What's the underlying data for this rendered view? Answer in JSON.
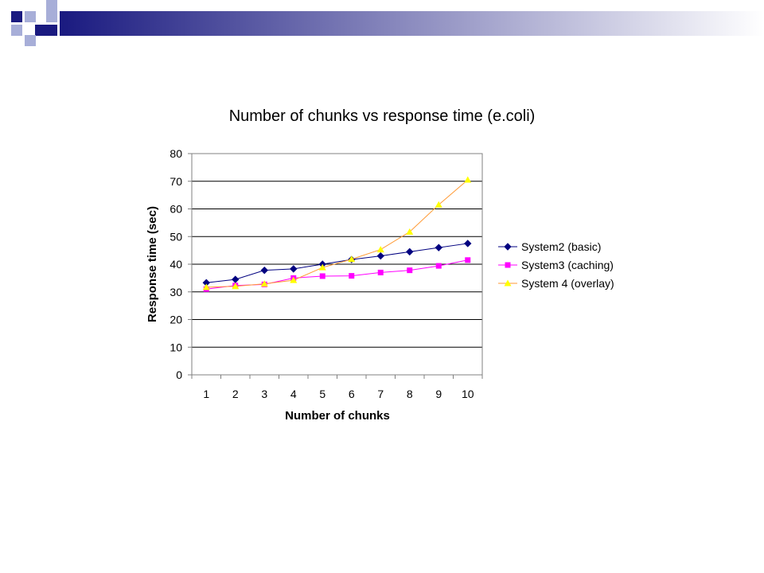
{
  "slide": {
    "header_colors": {
      "navy": "#1a1a80",
      "light_blue": "#a7aed8",
      "gradient_end": "#ffffff"
    }
  },
  "chart_data": {
    "type": "line",
    "title": "Number of chunks vs response time (e.coli)",
    "xlabel": "Number of chunks",
    "ylabel": "Response time (sec)",
    "categories": [
      "1",
      "2",
      "3",
      "4",
      "5",
      "6",
      "7",
      "8",
      "9",
      "10"
    ],
    "ylim": [
      0,
      80
    ],
    "yticks": [
      0,
      10,
      20,
      30,
      40,
      50,
      60,
      70,
      80
    ],
    "grid": "horizontal",
    "legend_position": "right",
    "series": [
      {
        "name": "System2 (basic)",
        "color": "#000080",
        "marker": "diamond",
        "values": [
          33.3,
          34.5,
          37.8,
          38.3,
          40,
          41.7,
          43,
          44.5,
          46,
          47.5
        ]
      },
      {
        "name": "System3 (caching)",
        "color": "#ff00ff",
        "marker": "square",
        "values": [
          31,
          32.3,
          32.7,
          35,
          35.7,
          35.8,
          37,
          37.8,
          39.4,
          41.5
        ]
      },
      {
        "name": "System 4 (overlay)",
        "color": "#ff9933",
        "marker": "triangle",
        "marker_color": "#ffff00",
        "values": [
          31.7,
          32,
          32.9,
          34.2,
          38.8,
          41.8,
          45.3,
          51.7,
          61.5,
          70.5
        ]
      }
    ]
  }
}
